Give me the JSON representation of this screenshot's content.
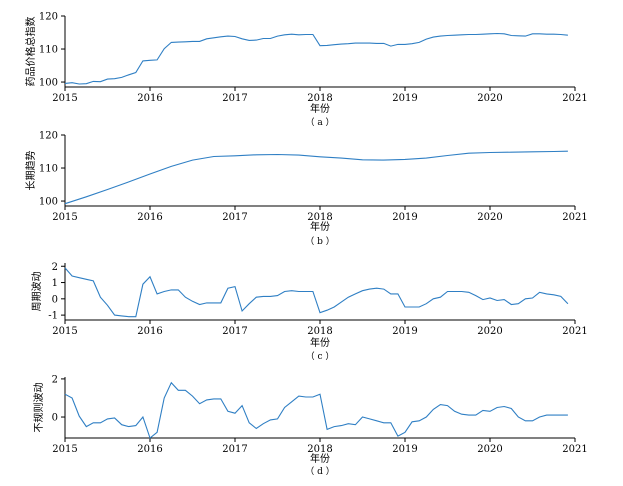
{
  "chart_data": [
    {
      "id": "a",
      "type": "line",
      "ylabel": "药品价格总指数",
      "xlabel": "年份",
      "caption": "（ a ）",
      "color": "#2f7fc4",
      "xlim": [
        2015,
        2021
      ],
      "ylim": [
        98.5,
        120
      ],
      "xticks": [
        2015,
        2016,
        2017,
        2018,
        2019,
        2020,
        2021
      ],
      "yticks": [
        100,
        110,
        120
      ],
      "grid": false,
      "x": [
        2015.0,
        2015.083,
        2015.167,
        2015.25,
        2015.333,
        2015.417,
        2015.5,
        2015.583,
        2015.667,
        2015.75,
        2015.833,
        2015.917,
        2016.0,
        2016.083,
        2016.167,
        2016.25,
        2016.333,
        2016.417,
        2016.5,
        2016.583,
        2016.667,
        2016.75,
        2016.833,
        2016.917,
        2017.0,
        2017.083,
        2017.167,
        2017.25,
        2017.333,
        2017.417,
        2017.5,
        2017.583,
        2017.667,
        2017.75,
        2017.833,
        2017.917,
        2018.0,
        2018.083,
        2018.167,
        2018.25,
        2018.333,
        2018.417,
        2018.5,
        2018.583,
        2018.667,
        2018.75,
        2018.833,
        2018.917,
        2019.0,
        2019.083,
        2019.167,
        2019.25,
        2019.333,
        2019.417,
        2019.5,
        2019.583,
        2019.667,
        2019.75,
        2019.833,
        2019.917,
        2020.0,
        2020.083,
        2020.167,
        2020.25,
        2020.333,
        2020.417,
        2020.5,
        2020.583,
        2020.667,
        2020.75,
        2020.833,
        2020.917
      ],
      "y": [
        99.6,
        99.8,
        99.4,
        99.5,
        100.2,
        100.1,
        100.9,
        101.0,
        101.4,
        102.2,
        102.9,
        106.4,
        106.6,
        106.7,
        110.1,
        112.0,
        112.1,
        112.2,
        112.3,
        112.3,
        113.1,
        113.4,
        113.7,
        113.9,
        113.8,
        113.1,
        112.6,
        112.7,
        113.2,
        113.2,
        113.9,
        114.3,
        114.5,
        114.3,
        114.4,
        114.4,
        111.0,
        111.1,
        111.3,
        111.5,
        111.6,
        111.8,
        111.8,
        111.8,
        111.7,
        111.7,
        110.9,
        111.4,
        111.4,
        111.6,
        112.0,
        113.0,
        113.6,
        113.9,
        114.1,
        114.2,
        114.3,
        114.4,
        114.4,
        114.5,
        114.6,
        114.7,
        114.6,
        114.1,
        114.0,
        113.9,
        114.6,
        114.6,
        114.5,
        114.5,
        114.4,
        114.2
      ]
    },
    {
      "id": "b",
      "type": "line",
      "ylabel": "长期趋势",
      "xlabel": "年份",
      "caption": "（ b ）",
      "color": "#2f7fc4",
      "xlim": [
        2015,
        2021
      ],
      "ylim": [
        98.5,
        120
      ],
      "xticks": [
        2015,
        2016,
        2017,
        2018,
        2019,
        2020,
        2021
      ],
      "yticks": [
        100,
        110,
        120
      ],
      "grid": false,
      "x": [
        2015.0,
        2015.25,
        2015.5,
        2015.75,
        2016.0,
        2016.25,
        2016.5,
        2016.75,
        2017.0,
        2017.25,
        2017.5,
        2017.75,
        2018.0,
        2018.25,
        2018.5,
        2018.75,
        2019.0,
        2019.25,
        2019.5,
        2019.75,
        2020.0,
        2020.25,
        2020.5,
        2020.75,
        2020.917
      ],
      "y": [
        99.2,
        101.3,
        103.5,
        105.8,
        108.2,
        110.5,
        112.4,
        113.5,
        113.7,
        114.0,
        114.1,
        113.9,
        113.4,
        113.0,
        112.5,
        112.4,
        112.6,
        113.0,
        113.8,
        114.5,
        114.7,
        114.8,
        114.9,
        115.0,
        115.1
      ]
    },
    {
      "id": "c",
      "type": "line",
      "ylabel": "周期波动",
      "xlabel": "年份",
      "caption": "（ c ）",
      "color": "#2f7fc4",
      "xlim": [
        2015,
        2021
      ],
      "ylim": [
        -1.3,
        2.2
      ],
      "xticks": [
        2015,
        2016,
        2017,
        2018,
        2019,
        2020,
        2021
      ],
      "yticks": [
        -1,
        0,
        1,
        2
      ],
      "grid": false,
      "x": [
        2015.0,
        2015.083,
        2015.167,
        2015.25,
        2015.333,
        2015.417,
        2015.5,
        2015.583,
        2015.667,
        2015.75,
        2015.833,
        2015.917,
        2016.0,
        2016.083,
        2016.167,
        2016.25,
        2016.333,
        2016.417,
        2016.5,
        2016.583,
        2016.667,
        2016.75,
        2016.833,
        2016.917,
        2017.0,
        2017.083,
        2017.167,
        2017.25,
        2017.333,
        2017.417,
        2017.5,
        2017.583,
        2017.667,
        2017.75,
        2017.833,
        2017.917,
        2018.0,
        2018.083,
        2018.167,
        2018.25,
        2018.333,
        2018.417,
        2018.5,
        2018.583,
        2018.667,
        2018.75,
        2018.833,
        2018.917,
        2019.0,
        2019.083,
        2019.167,
        2019.25,
        2019.333,
        2019.417,
        2019.5,
        2019.583,
        2019.667,
        2019.75,
        2019.833,
        2019.917,
        2020.0,
        2020.083,
        2020.167,
        2020.25,
        2020.333,
        2020.417,
        2020.5,
        2020.583,
        2020.667,
        2020.75,
        2020.833,
        2020.917
      ],
      "y": [
        1.9,
        1.4,
        1.3,
        1.2,
        1.1,
        0.1,
        -0.4,
        -1.0,
        -1.05,
        -1.1,
        -1.1,
        0.9,
        1.35,
        0.3,
        0.45,
        0.55,
        0.55,
        0.1,
        -0.15,
        -0.35,
        -0.25,
        -0.25,
        -0.25,
        0.65,
        0.75,
        -0.75,
        -0.3,
        0.1,
        0.15,
        0.15,
        0.2,
        0.45,
        0.5,
        0.45,
        0.45,
        0.45,
        -0.85,
        -0.7,
        -0.5,
        -0.2,
        0.1,
        0.3,
        0.5,
        0.6,
        0.65,
        0.6,
        0.3,
        0.3,
        -0.5,
        -0.5,
        -0.5,
        -0.3,
        0.0,
        0.1,
        0.45,
        0.45,
        0.45,
        0.4,
        0.2,
        -0.05,
        0.05,
        -0.1,
        -0.05,
        -0.35,
        -0.3,
        0.0,
        0.05,
        0.4,
        0.3,
        0.25,
        0.15,
        -0.3
      ]
    },
    {
      "id": "d",
      "type": "line",
      "ylabel": "不规则波动",
      "xlabel": "年份",
      "caption": "（ d ）",
      "color": "#2f7fc4",
      "xlim": [
        2015,
        2021
      ],
      "ylim": [
        -1.1,
        2.1
      ],
      "xticks": [
        2015,
        2016,
        2017,
        2018,
        2019,
        2020,
        2021
      ],
      "yticks": [
        0,
        2
      ],
      "grid": false,
      "x": [
        2015.0,
        2015.083,
        2015.167,
        2015.25,
        2015.333,
        2015.417,
        2015.5,
        2015.583,
        2015.667,
        2015.75,
        2015.833,
        2015.917,
        2016.0,
        2016.083,
        2016.167,
        2016.25,
        2016.333,
        2016.417,
        2016.5,
        2016.583,
        2016.667,
        2016.75,
        2016.833,
        2016.917,
        2017.0,
        2017.083,
        2017.167,
        2017.25,
        2017.333,
        2017.417,
        2017.5,
        2017.583,
        2017.667,
        2017.75,
        2017.833,
        2017.917,
        2018.0,
        2018.083,
        2018.167,
        2018.25,
        2018.333,
        2018.417,
        2018.5,
        2018.583,
        2018.667,
        2018.75,
        2018.833,
        2018.917,
        2019.0,
        2019.083,
        2019.167,
        2019.25,
        2019.333,
        2019.417,
        2019.5,
        2019.583,
        2019.667,
        2019.75,
        2019.833,
        2019.917,
        2020.0,
        2020.083,
        2020.167,
        2020.25,
        2020.333,
        2020.417,
        2020.5,
        2020.583,
        2020.667,
        2020.75,
        2020.833,
        2020.917
      ],
      "y": [
        1.2,
        1.0,
        0.05,
        -0.5,
        -0.3,
        -0.3,
        -0.1,
        -0.05,
        -0.4,
        -0.5,
        -0.45,
        0.0,
        -1.1,
        -0.8,
        1.0,
        1.8,
        1.4,
        1.4,
        1.1,
        0.7,
        0.9,
        0.95,
        0.95,
        0.3,
        0.2,
        0.6,
        -0.3,
        -0.6,
        -0.35,
        -0.15,
        -0.1,
        0.5,
        0.8,
        1.1,
        1.05,
        1.05,
        1.2,
        -0.65,
        -0.5,
        -0.45,
        -0.35,
        -0.4,
        0.0,
        -0.1,
        -0.2,
        -0.3,
        -0.3,
        -1.0,
        -0.8,
        -0.25,
        -0.2,
        0.0,
        0.4,
        0.65,
        0.6,
        0.3,
        0.15,
        0.1,
        0.1,
        0.35,
        0.3,
        0.5,
        0.55,
        0.45,
        0.0,
        -0.2,
        -0.2,
        0.0,
        0.1,
        0.1,
        0.1,
        0.1
      ]
    }
  ]
}
